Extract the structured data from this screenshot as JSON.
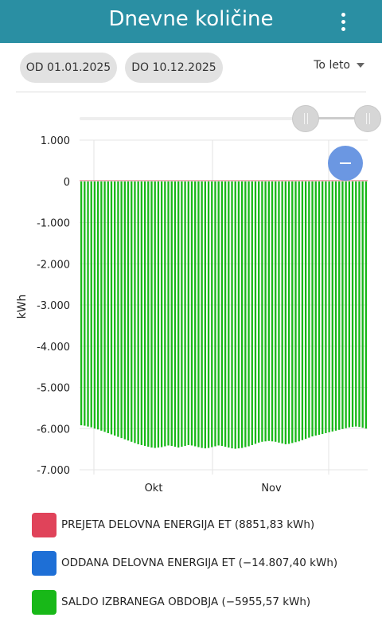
{
  "header": {
    "title": "Dnevne količine"
  },
  "filters": {
    "from_label": "OD 01.01.2025",
    "to_label": "DO 10.12.2025",
    "period_label": "To leto"
  },
  "colors": {
    "appbar": "#2a8fa3",
    "received": "#e0435a",
    "delivered": "#1e6fd6",
    "balance": "#18b818"
  },
  "legend": [
    {
      "label": "PREJETA DELOVNA ENERGIJA ET (8851,83 kWh)",
      "color": "#e0435a"
    },
    {
      "label": "ODDANA DELOVNA ENERGIJA ET (−14.807,40 kWh)",
      "color": "#1e6fd6"
    },
    {
      "label": "SALDO IZBRANEGA OBDOBJA (−5955,57 kWh)",
      "color": "#18b818"
    }
  ],
  "chart_data": {
    "type": "bar",
    "ylabel": "kWh",
    "ylim": [
      -7000,
      1000
    ],
    "yticks": [
      {
        "value": 1000,
        "label": "1.000"
      },
      {
        "value": 0,
        "label": "0"
      },
      {
        "value": -1000,
        "label": "-1.000"
      },
      {
        "value": -2000,
        "label": "-2.000"
      },
      {
        "value": -3000,
        "label": "-3.000"
      },
      {
        "value": -4000,
        "label": "-4.000"
      },
      {
        "value": -5000,
        "label": "-5.000"
      },
      {
        "value": -6000,
        "label": "-6.000"
      },
      {
        "value": -7000,
        "label": "-7.000"
      }
    ],
    "xticks": [
      {
        "label": "Okt"
      },
      {
        "label": "Nov"
      }
    ],
    "series": [
      {
        "name": "SALDO IZBRANEGA OBDOBJA",
        "color": "#18b818",
        "values": [
          -5920,
          -5930,
          -5950,
          -5970,
          -6000,
          -6020,
          -6050,
          -6080,
          -6110,
          -6140,
          -6170,
          -6200,
          -6230,
          -6260,
          -6290,
          -6320,
          -6350,
          -6380,
          -6400,
          -6420,
          -6440,
          -6460,
          -6470,
          -6460,
          -6450,
          -6430,
          -6410,
          -6420,
          -6440,
          -6460,
          -6440,
          -6420,
          -6400,
          -6410,
          -6430,
          -6450,
          -6470,
          -6480,
          -6470,
          -6450,
          -6430,
          -6410,
          -6420,
          -6440,
          -6460,
          -6480,
          -6490,
          -6480,
          -6470,
          -6450,
          -6430,
          -6400,
          -6370,
          -6340,
          -6320,
          -6310,
          -6300,
          -6310,
          -6320,
          -6340,
          -6360,
          -6380,
          -6370,
          -6350,
          -6330,
          -6310,
          -6280,
          -6250,
          -6220,
          -6190,
          -6170,
          -6150,
          -6130,
          -6110,
          -6090,
          -6070,
          -6050,
          -6030,
          -6010,
          -5990,
          -5970,
          -5960,
          -5950,
          -5960,
          -5980,
          -6000
        ]
      }
    ]
  }
}
